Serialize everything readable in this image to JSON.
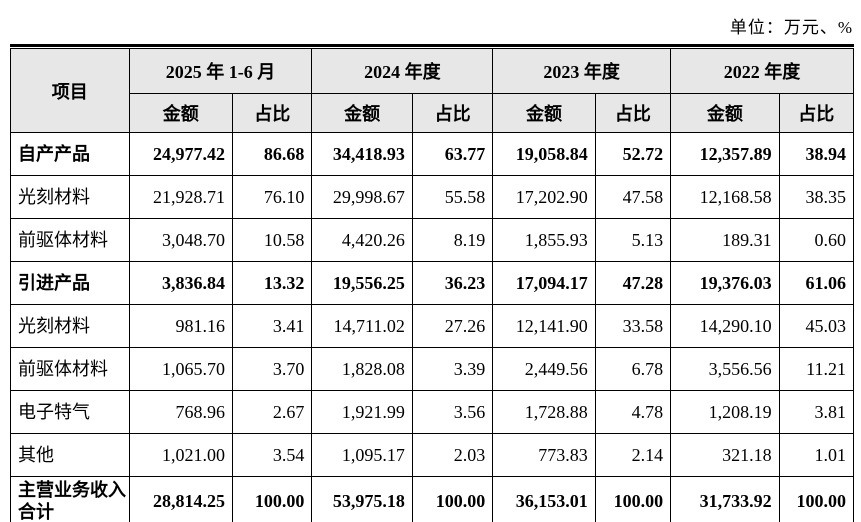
{
  "unit_label": "单位：万元、%",
  "colors": {
    "header_bg": "#e7e7e7",
    "border": "#000000",
    "text": "#000000",
    "page_bg": "#ffffff"
  },
  "table": {
    "item_header": "项目",
    "col_groups": [
      {
        "label": "2025 年 1-6 月"
      },
      {
        "label": "2024 年度"
      },
      {
        "label": "2023 年度"
      },
      {
        "label": "2022 年度"
      }
    ],
    "sub_headers": {
      "amount": "金额",
      "ratio": "占比"
    },
    "rows": [
      {
        "label": "自产产品",
        "bold": true,
        "values": [
          "24,977.42",
          "86.68",
          "34,418.93",
          "63.77",
          "19,058.84",
          "52.72",
          "12,357.89",
          "38.94"
        ]
      },
      {
        "label": "光刻材料",
        "bold": false,
        "values": [
          "21,928.71",
          "76.10",
          "29,998.67",
          "55.58",
          "17,202.90",
          "47.58",
          "12,168.58",
          "38.35"
        ]
      },
      {
        "label": "前驱体材料",
        "bold": false,
        "values": [
          "3,048.70",
          "10.58",
          "4,420.26",
          "8.19",
          "1,855.93",
          "5.13",
          "189.31",
          "0.60"
        ]
      },
      {
        "label": "引进产品",
        "bold": true,
        "values": [
          "3,836.84",
          "13.32",
          "19,556.25",
          "36.23",
          "17,094.17",
          "47.28",
          "19,376.03",
          "61.06"
        ]
      },
      {
        "label": "光刻材料",
        "bold": false,
        "values": [
          "981.16",
          "3.41",
          "14,711.02",
          "27.26",
          "12,141.90",
          "33.58",
          "14,290.10",
          "45.03"
        ]
      },
      {
        "label": "前驱体材料",
        "bold": false,
        "values": [
          "1,065.70",
          "3.70",
          "1,828.08",
          "3.39",
          "2,449.56",
          "6.78",
          "3,556.56",
          "11.21"
        ]
      },
      {
        "label": "电子特气",
        "bold": false,
        "values": [
          "768.96",
          "2.67",
          "1,921.99",
          "3.56",
          "1,728.88",
          "4.78",
          "1,208.19",
          "3.81"
        ]
      },
      {
        "label": "其他",
        "bold": false,
        "values": [
          "1,021.00",
          "3.54",
          "1,095.17",
          "2.03",
          "773.83",
          "2.14",
          "321.18",
          "1.01"
        ]
      },
      {
        "label": "主营业务收入合计",
        "bold": true,
        "total": true,
        "values": [
          "28,814.25",
          "100.00",
          "53,975.18",
          "100.00",
          "36,153.01",
          "100.00",
          "31,733.92",
          "100.00"
        ]
      }
    ]
  }
}
